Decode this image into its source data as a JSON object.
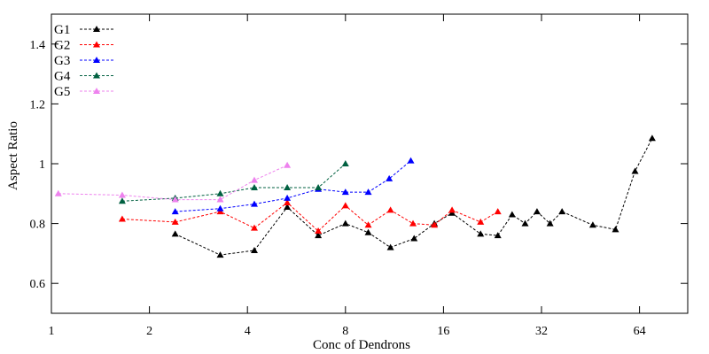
{
  "chart_data": {
    "type": "line",
    "xlabel": "Conc of Dendrons",
    "ylabel": "Aspect Ratio",
    "xscale": "log2",
    "xlim": [
      1,
      90
    ],
    "ylim": [
      0.5,
      1.5
    ],
    "xticks": [
      1,
      2,
      4,
      8,
      16,
      32,
      64
    ],
    "xtick_labels": [
      "1",
      "2",
      "4",
      "8",
      "16",
      "32",
      "64"
    ],
    "yticks": [
      0.6,
      0.8,
      1.0,
      1.2,
      1.4
    ],
    "ytick_labels": [
      "0.6",
      "0.8",
      "1",
      "1.2",
      "1.4"
    ],
    "grid": false,
    "legend_position": "top-left",
    "series": [
      {
        "name": "G1",
        "color": "#000000",
        "x": [
          2.4,
          3.3,
          4.2,
          5.3,
          6.6,
          8.0,
          9.4,
          11.0,
          13.0,
          15.0,
          17.0,
          20.8,
          23.5,
          26.0,
          28.5,
          31.0,
          34.0,
          37.0,
          46.0,
          54.0,
          62.0,
          70.0
        ],
        "y": [
          0.765,
          0.695,
          0.71,
          0.855,
          0.76,
          0.8,
          0.77,
          0.72,
          0.75,
          0.8,
          0.835,
          0.765,
          0.76,
          0.83,
          0.8,
          0.84,
          0.8,
          0.84,
          0.795,
          0.78,
          0.975,
          1.085
        ]
      },
      {
        "name": "G2",
        "color": "#ff0000",
        "x": [
          1.65,
          2.4,
          3.3,
          4.2,
          5.3,
          6.6,
          8.0,
          9.4,
          11.0,
          12.9,
          15.0,
          17.0,
          20.8,
          23.5
        ],
        "y": [
          0.815,
          0.805,
          0.84,
          0.785,
          0.87,
          0.775,
          0.86,
          0.795,
          0.845,
          0.8,
          0.795,
          0.845,
          0.805,
          0.84
        ]
      },
      {
        "name": "G3",
        "color": "#0000ff",
        "x": [
          2.4,
          3.3,
          4.2,
          5.3,
          6.6,
          8.0,
          9.4,
          10.9,
          12.7
        ],
        "y": [
          0.84,
          0.85,
          0.865,
          0.885,
          0.915,
          0.905,
          0.905,
          0.95,
          1.01
        ]
      },
      {
        "name": "G4",
        "color": "#006040",
        "x": [
          1.65,
          2.4,
          3.3,
          4.2,
          5.3,
          6.6,
          8.0
        ],
        "y": [
          0.875,
          0.885,
          0.9,
          0.92,
          0.92,
          0.92,
          1.0
        ]
      },
      {
        "name": "G5",
        "color": "#ee82ee",
        "x": [
          1.05,
          1.65,
          2.4,
          3.3,
          4.2,
          5.3
        ],
        "y": [
          0.9,
          0.895,
          0.88,
          0.88,
          0.945,
          0.995
        ]
      }
    ]
  }
}
